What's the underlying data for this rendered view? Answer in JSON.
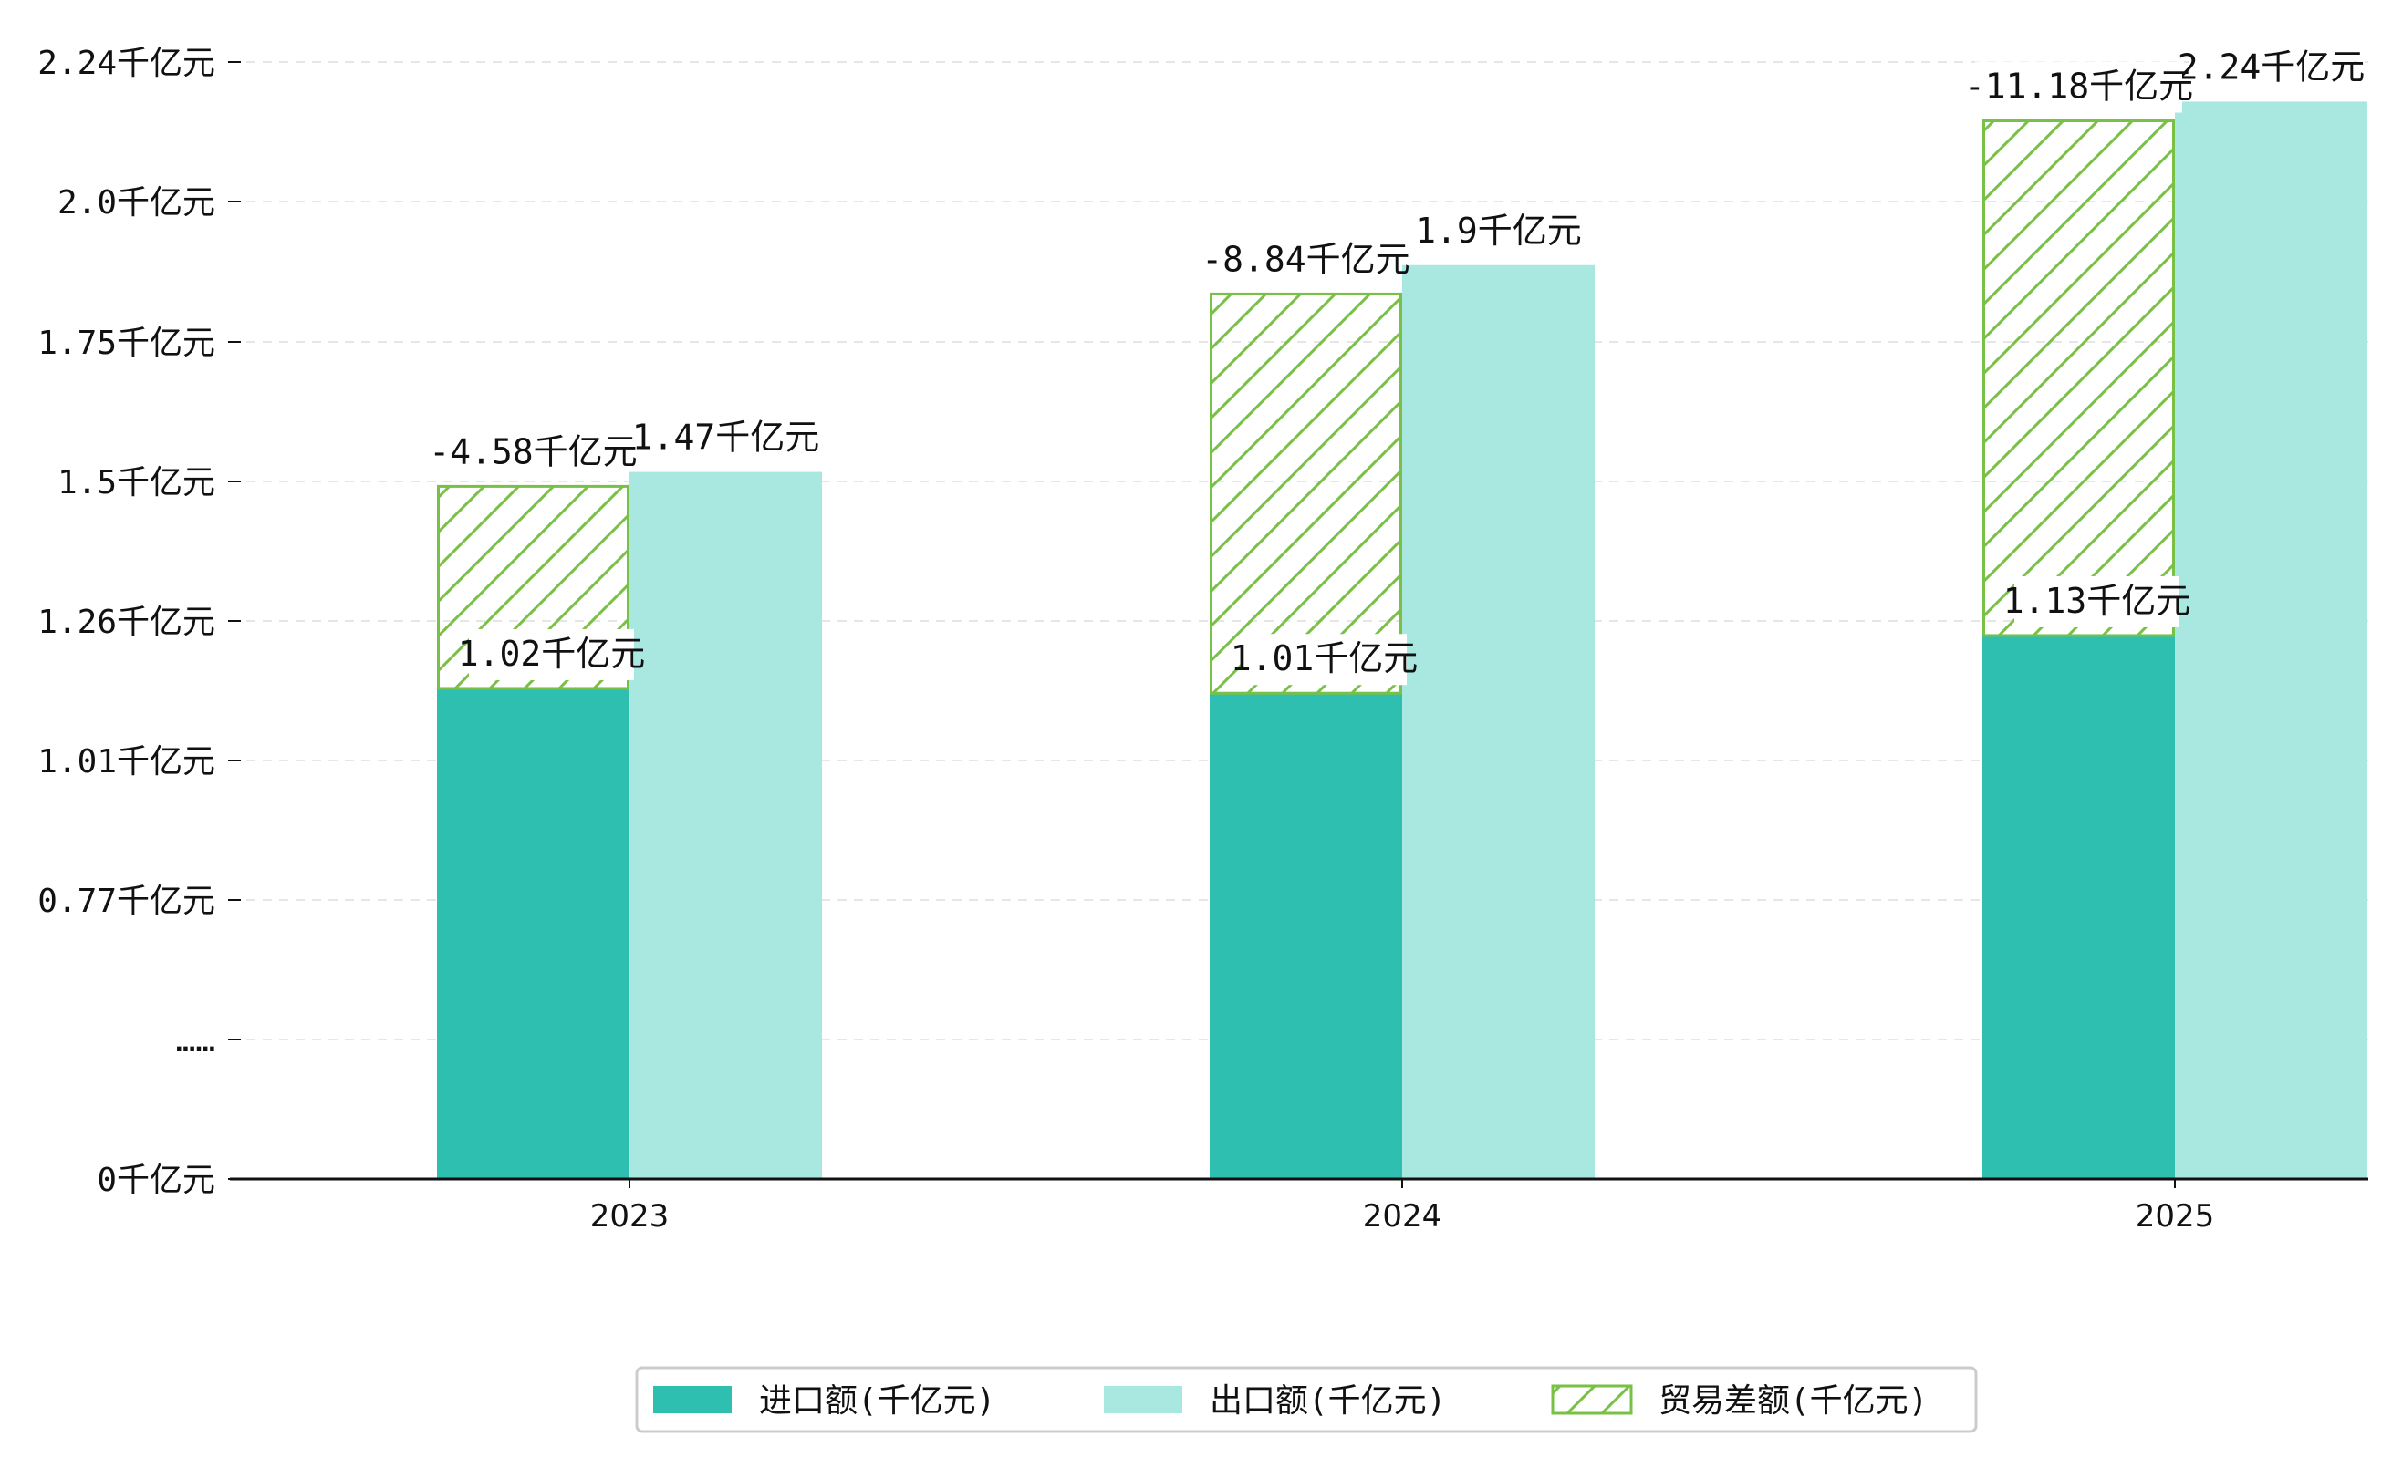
{
  "chart_data": {
    "type": "bar",
    "categories": [
      "2023",
      "2024",
      "2025"
    ],
    "y_tick_labels": [
      "0千亿元",
      "……",
      "0.77千亿元",
      "1.01千亿元",
      "1.26千亿元",
      "1.5千亿元",
      "1.75千亿元",
      "2.0千亿元",
      "2.24千亿元"
    ],
    "ylim": [
      0,
      2.4
    ],
    "grid": "horizontal dashed",
    "legend_position": "bottom-center",
    "series": [
      {
        "name": "进口额(千亿元)",
        "values": [
          1.02,
          1.01,
          1.13
        ],
        "data_labels": [
          "1.02千亿元",
          "1.01千亿元",
          "1.13千亿元"
        ],
        "color": "#2fbfb0"
      },
      {
        "name": "出口额(千亿元)",
        "values": [
          1.47,
          1.9,
          2.24
        ],
        "data_labels": [
          "1.47千亿元",
          "1.9千亿元",
          "2.24千亿元"
        ],
        "color": "#a8e8e1"
      },
      {
        "name": "贸易差额(千亿元)",
        "values": [
          -4.58,
          -8.84,
          -11.18
        ],
        "stack_top": [
          1.44,
          1.84,
          2.2
        ],
        "data_labels": [
          "-4.58千亿元",
          "-8.84千亿元",
          "-11.18千亿元"
        ],
        "color": "#79c046",
        "pattern": "hatch"
      }
    ]
  }
}
